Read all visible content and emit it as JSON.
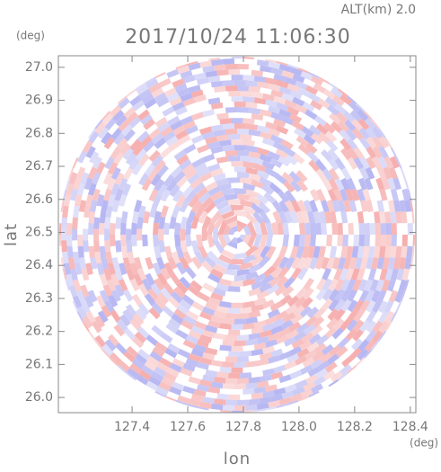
{
  "chart_data": {
    "type": "radar-ppi",
    "title": "2017/10/24 11:06:30",
    "annotation": "ALT(km) 2.0",
    "xlabel": "lon",
    "ylabel": "lat",
    "x_unit": "(deg)",
    "y_unit": "(deg)",
    "xlim": [
      127.135,
      128.42
    ],
    "ylim": [
      25.954,
      27.035
    ],
    "xticks": [
      127.4,
      127.6,
      127.8,
      {
        "value": 128.0,
        "label": "128.0"
      },
      128.2,
      128.4
    ],
    "yticks": [
      {
        "value": 26.0,
        "label": "26.0"
      },
      26.1,
      26.2,
      26.3,
      26.4,
      26.5,
      26.6,
      26.7,
      26.8,
      26.9,
      {
        "value": 27.0,
        "label": "27.0"
      }
    ],
    "colors": [
      "#f4a0a0",
      "#a8a8f0"
    ]
  }
}
